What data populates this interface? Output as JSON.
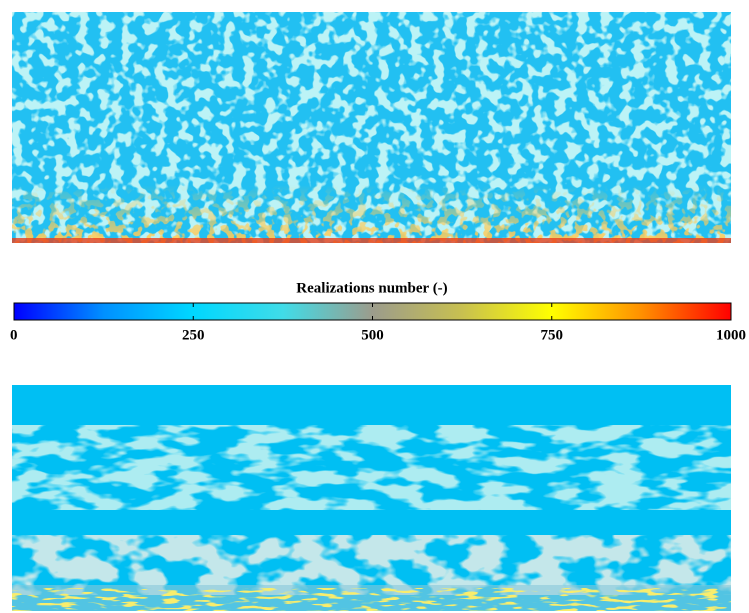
{
  "chart_data": {
    "type": "colorbar",
    "title": "Realizations number (-)",
    "clim": [
      0,
      1000
    ],
    "ticks": [
      0,
      250,
      500,
      750,
      1000
    ],
    "colormap": [
      "#0000ff",
      "#0090ff",
      "#00d8ff",
      "#40dce8",
      "#9c9c8c",
      "#c8c050",
      "#ffff00",
      "#ff9000",
      "#ff0000"
    ]
  }
}
